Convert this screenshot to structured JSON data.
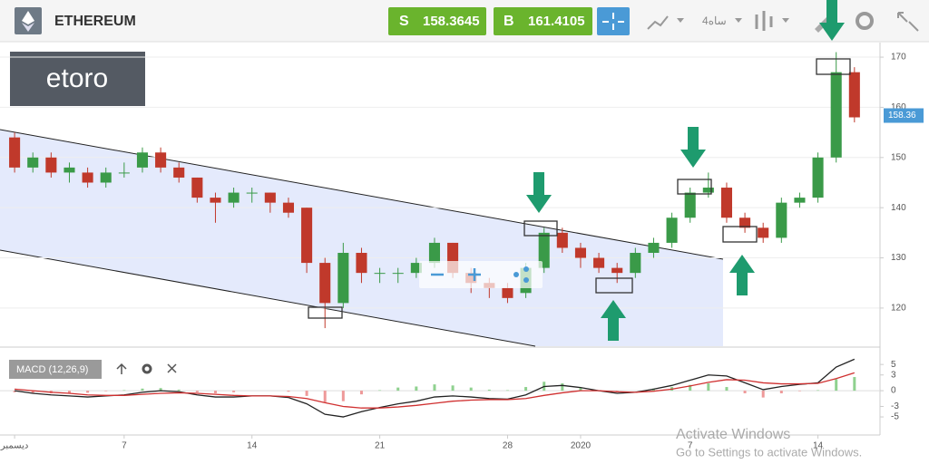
{
  "header": {
    "title": "ETHEREUM",
    "sell_label": "S",
    "sell": "158.3645",
    "buy_label": "B",
    "buy": "161.4105",
    "timeframe": "4ساه",
    "logo": "etoro"
  },
  "watermark": {
    "title": "Activate Windows",
    "subtitle": "Go to Settings to activate Windows."
  },
  "chart_data": [
    {
      "type": "candlestick",
      "x": [
        0,
        1,
        2,
        3,
        4,
        5,
        6,
        7,
        8,
        9,
        10,
        11,
        12,
        13,
        14,
        15,
        16,
        17,
        18,
        19,
        20,
        21,
        22,
        23,
        24,
        25,
        26,
        27,
        28,
        29,
        30,
        31,
        32,
        33,
        34,
        35,
        36,
        37,
        38,
        39,
        40,
        41,
        42,
        43,
        44,
        45,
        46
      ],
      "ohlc": [
        [
          154,
          155,
          147,
          148
        ],
        [
          148,
          151,
          147,
          150
        ],
        [
          150,
          151,
          146,
          147
        ],
        [
          147,
          149,
          145,
          148
        ],
        [
          147,
          148,
          144,
          145
        ],
        [
          145,
          148,
          144,
          147
        ],
        [
          147,
          149,
          146,
          147
        ],
        [
          148,
          152,
          147,
          151
        ],
        [
          151,
          152,
          147,
          148
        ],
        [
          148,
          149,
          145,
          146
        ],
        [
          146,
          146,
          141,
          142
        ],
        [
          142,
          143,
          137,
          141
        ],
        [
          141,
          144,
          140,
          143
        ],
        [
          143,
          144,
          141,
          143
        ],
        [
          143,
          143,
          139,
          141
        ],
        [
          141,
          142,
          138,
          139
        ],
        [
          140,
          140,
          127,
          129
        ],
        [
          129,
          130,
          116,
          121
        ],
        [
          121,
          133,
          120,
          131
        ],
        [
          131,
          132,
          125,
          127
        ],
        [
          127,
          128,
          125,
          127
        ],
        [
          127,
          128,
          125,
          127
        ],
        [
          127,
          130,
          126,
          129
        ],
        [
          129,
          134,
          128,
          133
        ],
        [
          133,
          133,
          126,
          127
        ],
        [
          127,
          128,
          123,
          125
        ],
        [
          125,
          126,
          122,
          124
        ],
        [
          124,
          125,
          121,
          122
        ],
        [
          123,
          129,
          122,
          128
        ],
        [
          128,
          136,
          127,
          135
        ],
        [
          135,
          136,
          131,
          132
        ],
        [
          132,
          133,
          128,
          130
        ],
        [
          130,
          131,
          127,
          128
        ],
        [
          128,
          129,
          125,
          127
        ],
        [
          127,
          132,
          126,
          131
        ],
        [
          131,
          134,
          130,
          133
        ],
        [
          133,
          139,
          132,
          138
        ],
        [
          138,
          144,
          137,
          143
        ],
        [
          143,
          147,
          142,
          144
        ],
        [
          144,
          145,
          137,
          138
        ],
        [
          138,
          139,
          135,
          136
        ],
        [
          136,
          137,
          133,
          134
        ],
        [
          134,
          142,
          133,
          141
        ],
        [
          141,
          143,
          140,
          142
        ],
        [
          142,
          151,
          141,
          150
        ],
        [
          150,
          171,
          149,
          167
        ],
        [
          167,
          168,
          157,
          158
        ]
      ],
      "up_color": "#3a9a48",
      "down_color": "#c0392b",
      "last_price": 158.36,
      "xlim": [
        -0.8,
        47.4
      ],
      "ylim": [
        112.4,
        172.9
      ],
      "yticks": [
        120,
        130,
        140,
        150,
        160,
        170
      ],
      "grid": true
    },
    {
      "type": "line",
      "title": "MACD (12,26,9)",
      "x": [
        0,
        1,
        2,
        3,
        4,
        5,
        6,
        7,
        8,
        9,
        10,
        11,
        12,
        13,
        14,
        15,
        16,
        17,
        18,
        19,
        20,
        21,
        22,
        23,
        24,
        25,
        26,
        27,
        28,
        29,
        30,
        31,
        32,
        33,
        34,
        35,
        36,
        37,
        38,
        39,
        40,
        41,
        42,
        43,
        44,
        45,
        46
      ],
      "series": [
        {
          "name": "MACD",
          "color": "#222222",
          "values": [
            0,
            -0.5,
            -0.8,
            -1,
            -1.2,
            -1,
            -0.8,
            -0.3,
            0,
            -0.2,
            -0.8,
            -1.2,
            -1.2,
            -1,
            -1,
            -1.3,
            -2.5,
            -4.5,
            -5,
            -4,
            -3.2,
            -2.5,
            -2,
            -1.2,
            -1,
            -1.2,
            -1.5,
            -1.6,
            -0.8,
            0.8,
            1,
            0.6,
            0,
            -0.5,
            -0.3,
            0.3,
            1,
            2,
            3,
            2.8,
            1.5,
            0.2,
            0.8,
            1.2,
            1.5,
            4.5,
            6
          ]
        },
        {
          "name": "Signal",
          "color": "#d03030",
          "values": [
            0.3,
            0,
            -0.3,
            -0.5,
            -0.8,
            -0.9,
            -0.9,
            -0.7,
            -0.5,
            -0.4,
            -0.5,
            -0.7,
            -0.9,
            -1,
            -1,
            -1.1,
            -1.5,
            -2.3,
            -3,
            -3.3,
            -3.3,
            -3.1,
            -2.8,
            -2.4,
            -2,
            -1.8,
            -1.7,
            -1.7,
            -1.5,
            -0.9,
            -0.4,
            0,
            0,
            -0.2,
            -0.3,
            -0.1,
            0.3,
            0.9,
            1.6,
            2.1,
            2,
            1.5,
            1.3,
            1.3,
            1.4,
            2.3,
            3.4
          ]
        },
        {
          "name": "Histogram",
          "type": "bar",
          "color": "#8fd18f",
          "negative_color": "#ee9999",
          "values": [
            -0.3,
            -0.5,
            -0.5,
            -0.5,
            -0.4,
            -0.1,
            0.1,
            0.4,
            0.5,
            0.2,
            -0.3,
            -0.5,
            -0.3,
            0,
            0,
            -0.2,
            -1,
            -2.2,
            -2,
            -0.7,
            0.1,
            0.6,
            0.8,
            1.2,
            1,
            0.6,
            0.2,
            0.1,
            0.7,
            1.7,
            1.4,
            0.6,
            0,
            -0.3,
            0,
            0.4,
            0.7,
            1.1,
            1.4,
            0.7,
            -0.5,
            -1.3,
            -0.5,
            -0.1,
            0.1,
            2.2,
            2.6
          ]
        }
      ],
      "xlim": [
        -0.8,
        47.4
      ],
      "ylim": [
        -8.1,
        7.1
      ],
      "yticks": [
        -5,
        -3,
        0,
        3,
        5
      ],
      "xticks": [
        {
          "value": 0,
          "label": "ديسمبر"
        },
        {
          "value": 6,
          "label": "7"
        },
        {
          "value": 13,
          "label": "14"
        },
        {
          "value": 20,
          "label": "21"
        },
        {
          "value": 27,
          "label": "28"
        },
        {
          "value": 31,
          "label": "2020"
        },
        {
          "value": 37,
          "label": "7"
        },
        {
          "value": 44,
          "label": "14"
        }
      ]
    }
  ]
}
